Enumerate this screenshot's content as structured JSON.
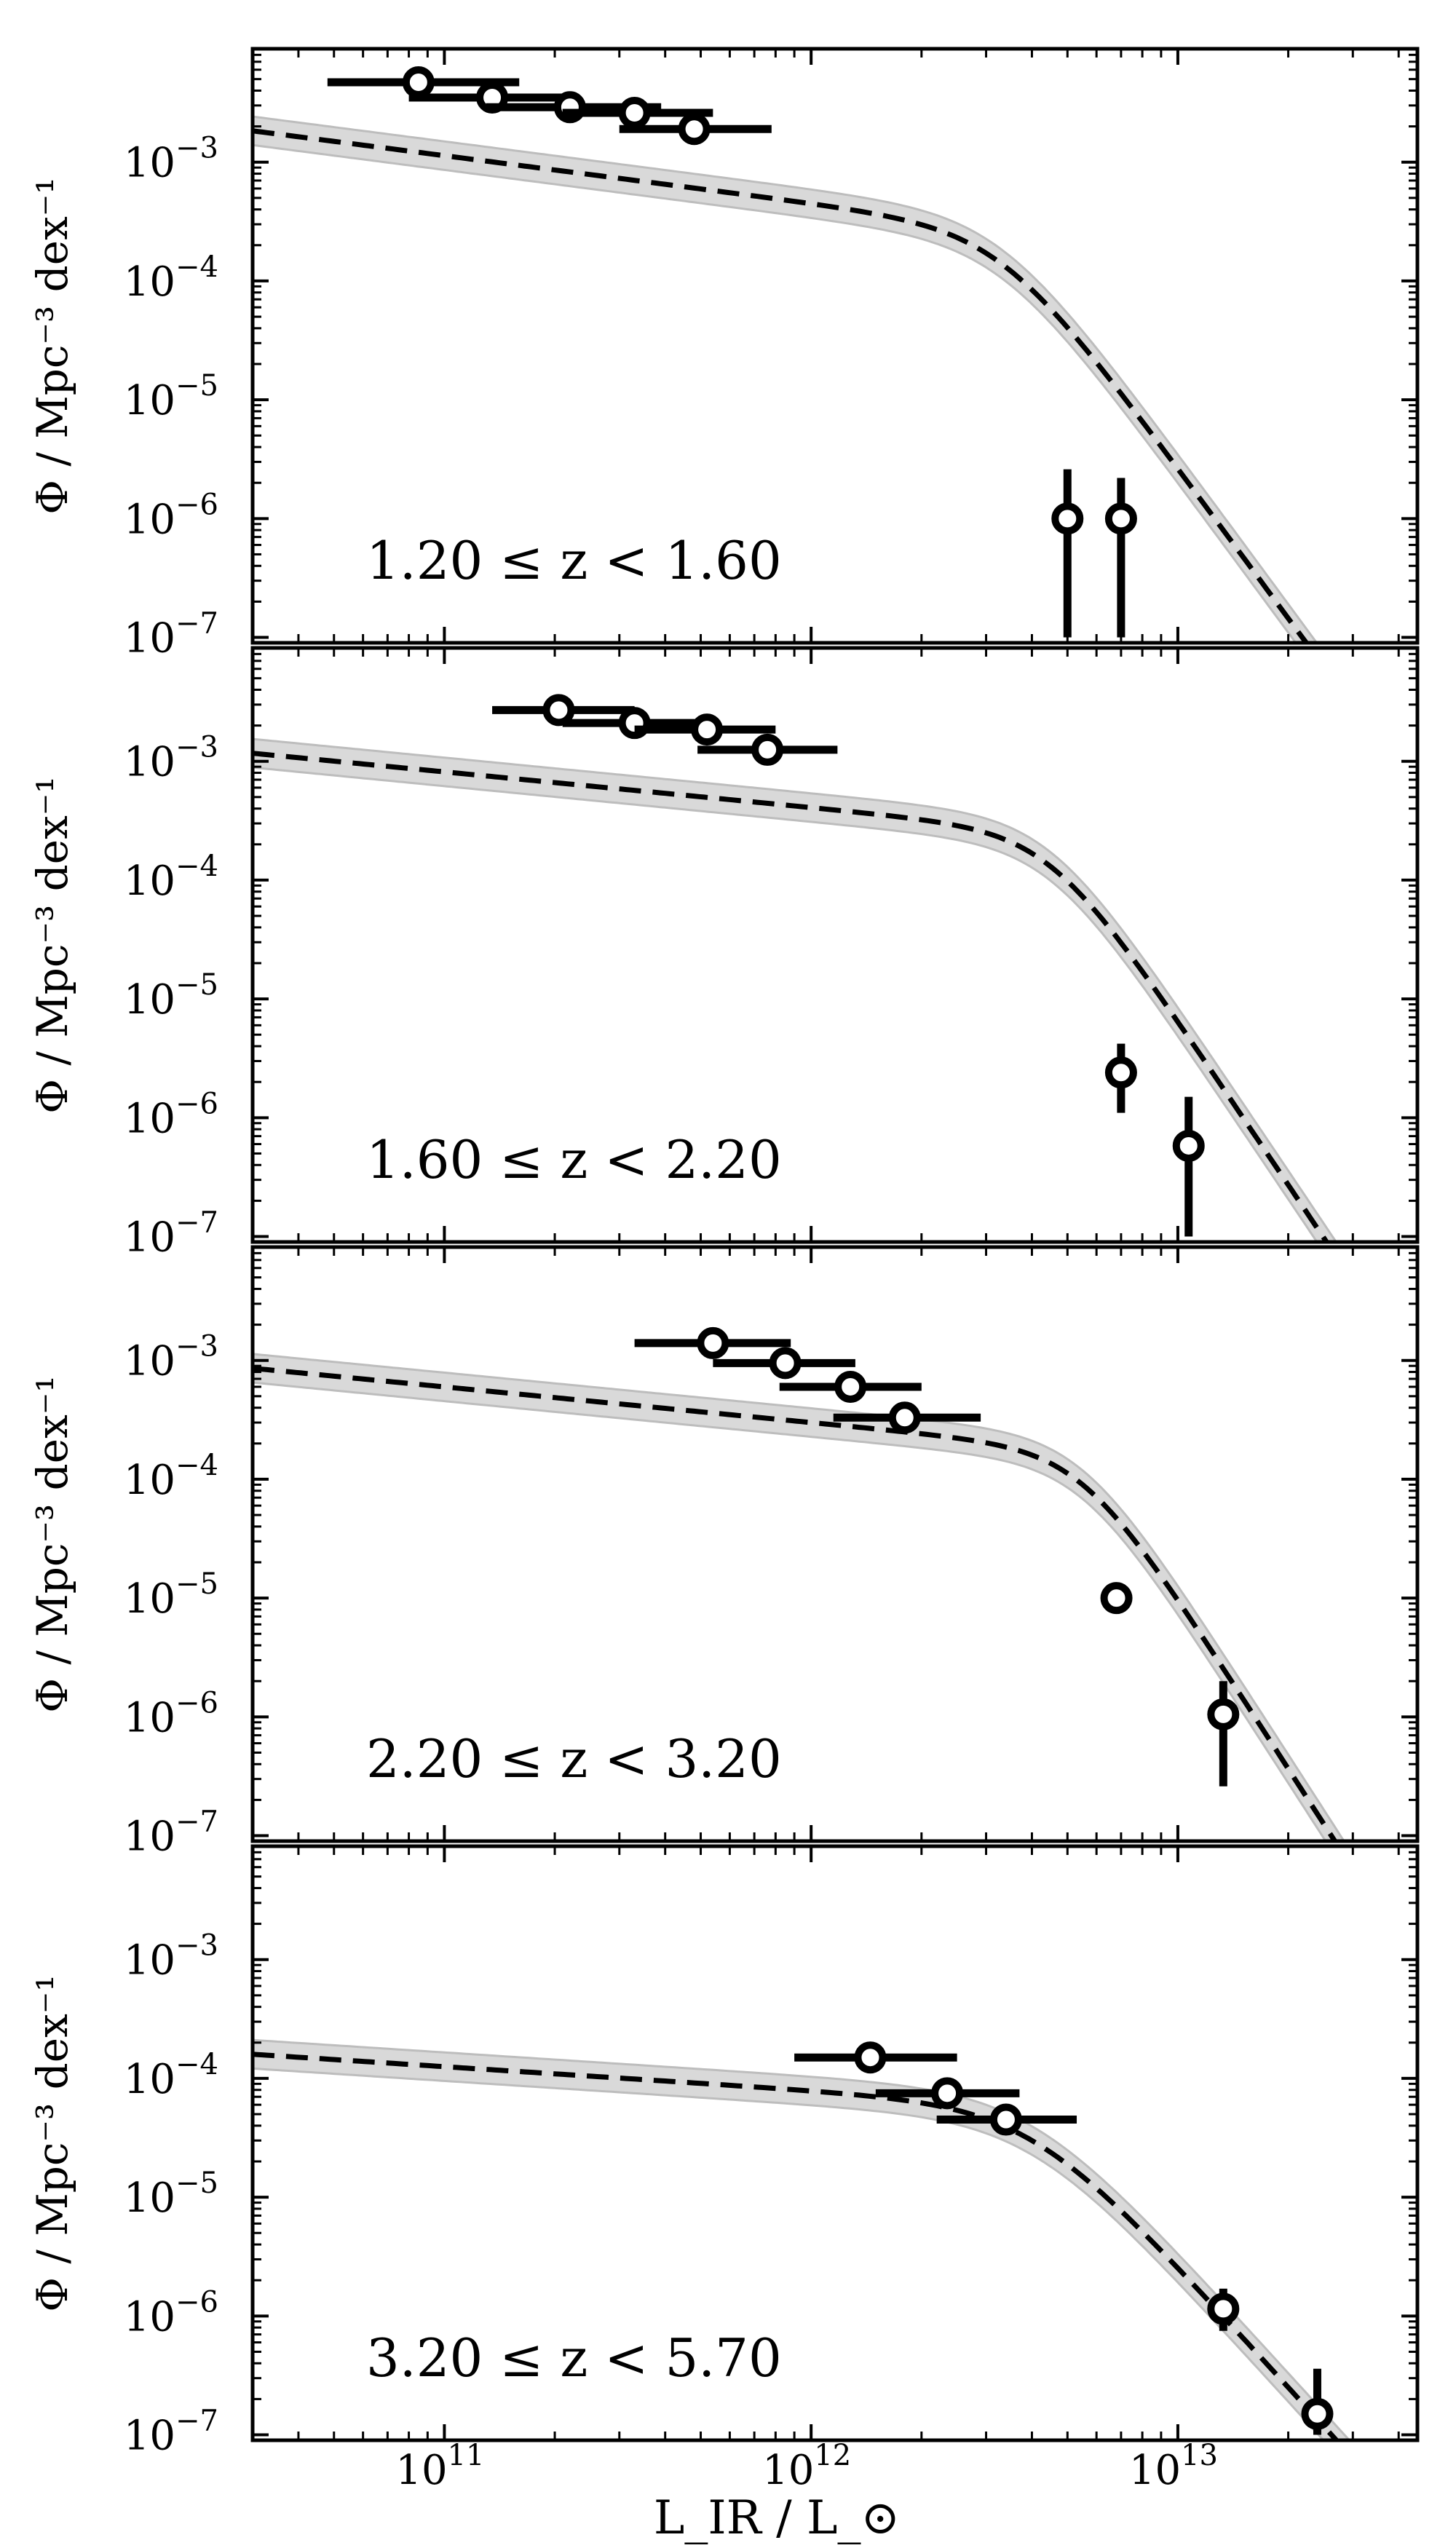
{
  "chart_data": {
    "type": "scatter",
    "layout": "4 vertically stacked panels with shared x axis",
    "xlabel": "L_IR / L_⊙",
    "ylabel": "Φ / Mpc⁻³ dex⁻¹",
    "x_scale": "log",
    "y_scale": "log",
    "xlim": [
      30000000000.0,
      45000000000000.0
    ],
    "ylim": [
      9e-08,
      0.009
    ],
    "x_ticks": [
      {
        "mantissa": "10",
        "exponent": "11",
        "value": 100000000000.0
      },
      {
        "mantissa": "10",
        "exponent": "12",
        "value": 1000000000000.0
      },
      {
        "mantissa": "10",
        "exponent": "13",
        "value": 10000000000000.0
      }
    ],
    "y_ticks": [
      {
        "mantissa": "10",
        "exponent": "−3",
        "value": 0.001
      },
      {
        "mantissa": "10",
        "exponent": "−4",
        "value": 0.0001
      },
      {
        "mantissa": "10",
        "exponent": "−5",
        "value": 1e-05
      },
      {
        "mantissa": "10",
        "exponent": "−6",
        "value": 1e-06
      },
      {
        "mantissa": "10",
        "exponent": "−7",
        "value": 1e-07
      }
    ],
    "grid": false,
    "colors": {
      "points": "#000000",
      "fit_line": "#000000",
      "band": "#d9d9d9",
      "band_edge": "#bdbdbd"
    },
    "panels": [
      {
        "label": "1.20 ≤ z < 1.60",
        "fit": {
          "model": "double power law",
          "phi_star": 0.00028,
          "l_star": 3300000000000.0,
          "alpha": 0.4,
          "beta": 4.2,
          "band_dex": 0.12
        },
        "points": [
          {
            "x": 85000000000.0,
            "y": 0.0047,
            "xerr": [
              48000000000.0,
              160000000000.0
            ],
            "yerr": [
              0.004,
              0.0055
            ]
          },
          {
            "x": 135000000000.0,
            "y": 0.0035,
            "xerr": [
              80000000000.0,
              230000000000.0
            ],
            "yerr": [
              0.003,
              0.0041
            ]
          },
          {
            "x": 220000000000.0,
            "y": 0.0029,
            "xerr": [
              130000000000.0,
              390000000000.0
            ],
            "yerr": [
              0.0025,
              0.0034
            ]
          },
          {
            "x": 330000000000.0,
            "y": 0.0026,
            "xerr": [
              210000000000.0,
              540000000000.0
            ],
            "yerr": [
              0.0022,
              0.0031
            ]
          },
          {
            "x": 480000000000.0,
            "y": 0.0019,
            "xerr": [
              300000000000.0,
              780000000000.0
            ],
            "yerr": [
              0.0015,
              0.0024
            ]
          },
          {
            "x": 5000000000000.0,
            "y": 1e-06,
            "xerr": null,
            "yerr": [
              1e-07,
              2.6e-06
            ]
          },
          {
            "x": 7000000000000.0,
            "y": 1e-06,
            "xerr": null,
            "yerr": [
              1e-07,
              2.2e-06
            ]
          }
        ]
      },
      {
        "label": "1.60 ≤ z < 2.20",
        "fit": {
          "model": "double power law",
          "phi_star": 0.00026,
          "l_star": 4500000000000.0,
          "alpha": 0.3,
          "beta": 4.6,
          "band_dex": 0.12
        },
        "points": [
          {
            "x": 205000000000.0,
            "y": 0.0027,
            "xerr": [
              135000000000.0,
              330000000000.0
            ],
            "yerr": [
              0.0023,
              0.0031
            ]
          },
          {
            "x": 330000000000.0,
            "y": 0.0021,
            "xerr": [
              210000000000.0,
              520000000000.0
            ],
            "yerr": [
              0.0018,
              0.0025
            ]
          },
          {
            "x": 520000000000.0,
            "y": 0.00185,
            "xerr": [
              330000000000.0,
              800000000000.0
            ],
            "yerr": [
              0.00155,
              0.0022
            ]
          },
          {
            "x": 760000000000.0,
            "y": 0.00125,
            "xerr": [
              490000000000.0,
              1180000000000.0
            ],
            "yerr": [
              0.001,
              0.0015
            ]
          },
          {
            "x": 7000000000000.0,
            "y": 2.4e-06,
            "xerr": null,
            "yerr": [
              1.1e-06,
              4.2e-06
            ]
          },
          {
            "x": 10700000000000.0,
            "y": 5.8e-07,
            "xerr": null,
            "yerr": [
              1e-07,
              1.5e-06
            ]
          }
        ]
      },
      {
        "label": "2.20 ≤ z < 3.20",
        "fit": {
          "model": "double power law",
          "phi_star": 0.00018,
          "l_star": 5500000000000.0,
          "alpha": 0.3,
          "beta": 4.8,
          "band_dex": 0.12
        },
        "points": [
          {
            "x": 540000000000.0,
            "y": 0.0014,
            "xerr": [
              330000000000.0,
              880000000000.0
            ],
            "yerr": [
              0.0012,
              0.00165
            ]
          },
          {
            "x": 850000000000.0,
            "y": 0.00095,
            "xerr": [
              540000000000.0,
              1320000000000.0
            ],
            "yerr": [
              0.00078,
              0.00115
            ]
          },
          {
            "x": 1280000000000.0,
            "y": 0.0006,
            "xerr": [
              820000000000.0,
              2000000000000.0
            ],
            "yerr": [
              0.00048,
              0.00073
            ]
          },
          {
            "x": 1800000000000.0,
            "y": 0.00033,
            "xerr": [
              1150000000000.0,
              2900000000000.0
            ],
            "yerr": [
              0.00026,
              0.00041
            ]
          },
          {
            "x": 6800000000000.0,
            "y": 1e-05,
            "xerr": null,
            "yerr": [
              8.3e-06,
              1.2e-05
            ]
          },
          {
            "x": 13300000000000.0,
            "y": 1.05e-06,
            "xerr": null,
            "yerr": [
              2.6e-07,
              2e-06
            ]
          }
        ]
      },
      {
        "label": "3.20 ≤ z < 5.70",
        "fit": {
          "model": "double power law",
          "phi_star": 6e-05,
          "l_star": 4000000000000.0,
          "alpha": 0.2,
          "beta": 3.4,
          "band_dex": 0.12
        },
        "points": [
          {
            "x": 1450000000000.0,
            "y": 0.00015,
            "xerr": [
              900000000000.0,
              2500000000000.0
            ],
            "yerr": [
              0.000125,
              0.000175
            ]
          },
          {
            "x": 2350000000000.0,
            "y": 7.5e-05,
            "xerr": [
              1500000000000.0,
              3700000000000.0
            ],
            "yerr": [
              6e-05,
              9e-05
            ]
          },
          {
            "x": 3400000000000.0,
            "y": 4.5e-05,
            "xerr": [
              2200000000000.0,
              5300000000000.0
            ],
            "yerr": [
              3.6e-05,
              5.6e-05
            ]
          },
          {
            "x": 13300000000000.0,
            "y": 1.15e-06,
            "xerr": null,
            "yerr": [
              7.5e-07,
              1.7e-06
            ]
          },
          {
            "x": 24000000000000.0,
            "y": 1.5e-07,
            "xerr": null,
            "yerr": [
              1e-07,
              3.6e-07
            ]
          }
        ]
      }
    ]
  }
}
